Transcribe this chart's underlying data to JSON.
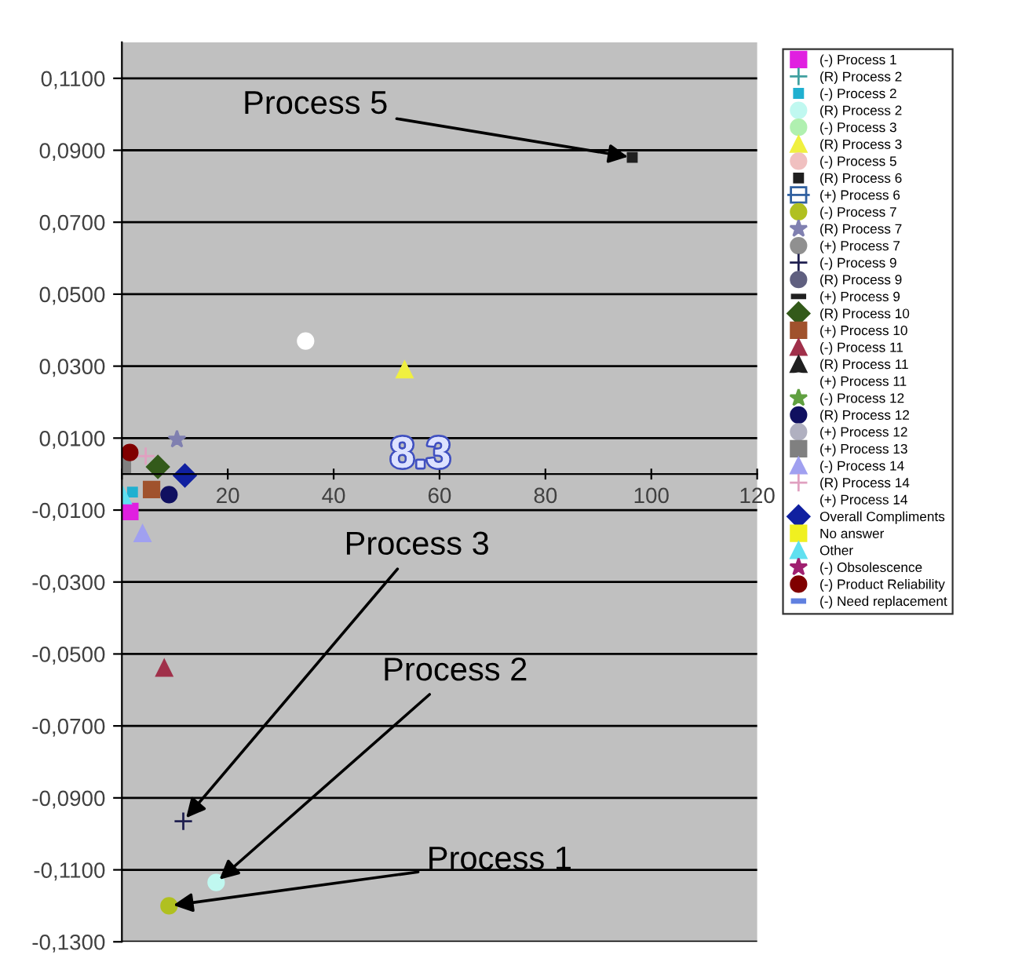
{
  "chart_data": {
    "type": "scatter",
    "xlim": [
      0,
      120
    ],
    "ylim": [
      -0.13,
      0.12
    ],
    "xticks": [
      {
        "value": 0,
        "label": null
      },
      20,
      40,
      60,
      80,
      100,
      120
    ],
    "yticks": [
      {
        "value": -0.13,
        "label": "-0,1300"
      },
      {
        "value": -0.11,
        "label": "-0,1100"
      },
      {
        "value": -0.09,
        "label": "-0,0900"
      },
      {
        "value": -0.07,
        "label": "-0,0700"
      },
      {
        "value": -0.05,
        "label": "-0,0500"
      },
      {
        "value": -0.03,
        "label": "-0,0300"
      },
      {
        "value": -0.01,
        "label": "-0,0100"
      },
      {
        "value": 0.01,
        "label": "0,0100"
      },
      {
        "value": 0.03,
        "label": "0,0300"
      },
      {
        "value": 0.05,
        "label": "0,0500"
      },
      {
        "value": 0.07,
        "label": "0,0700"
      },
      {
        "value": 0.09,
        "label": "0,0900"
      },
      {
        "value": 0.11,
        "label": "0,1100"
      }
    ],
    "grid": "y",
    "legend": "right",
    "annotations": [
      {
        "text": "Process 5",
        "x": 96.4,
        "y": 0.088
      },
      {
        "text": "Process 3",
        "x": 11.6,
        "y": -0.0965
      },
      {
        "text": "Process 2",
        "x": 17.8,
        "y": -0.1135
      },
      {
        "text": "Process 1",
        "x": 8.9,
        "y": -0.12
      },
      "8.3"
    ],
    "series": [
      {
        "name": "(-) Process 1",
        "color": "#e020e0",
        "marker": "square",
        "x": [
          1.5
        ],
        "values": [
          -0.0104
        ]
      },
      {
        "name": "(R) Process 2",
        "color": "#40a0a0",
        "marker": "cross"
      },
      {
        "name": "(-) Process 2",
        "color": "#20b0d0",
        "marker": "square",
        "x": [
          2.0
        ],
        "values": [
          -0.005
        ]
      },
      {
        "name": "(R) Process 2",
        "color": "#c0f8f0",
        "marker": "circle",
        "x": [
          17.8
        ],
        "values": [
          -0.1135
        ]
      },
      {
        "name": "(-) Process 3",
        "color": "#b0f0b0",
        "marker": "circle"
      },
      {
        "name": "(R) Process 3",
        "color": "#f0f040",
        "marker": "triangle",
        "x": [
          53.4
        ],
        "values": [
          0.029
        ]
      },
      {
        "name": "(-) Process 5",
        "color": "#f0c0c0",
        "marker": "circle"
      },
      {
        "name": "(R) Process 6",
        "color": "#202020",
        "marker": "square",
        "x": [
          96.4
        ],
        "values": [
          0.088
        ]
      },
      {
        "name": "(+) Process 6",
        "color": "#3060a0",
        "marker": "square",
        "line_style": "solid"
      },
      {
        "name": "(-) Process 7",
        "color": "#b0c020",
        "marker": "circle",
        "x": [
          8.9
        ],
        "values": [
          -0.12
        ]
      },
      {
        "name": "(R) Process 7",
        "color": "#8080b0",
        "marker": "star",
        "x": [
          10.4
        ],
        "values": [
          0.0096
        ]
      },
      {
        "name": "(+) Process 7",
        "color": "#909090",
        "marker": "circle"
      },
      {
        "name": "(-) Process 9",
        "color": "#202050",
        "marker": "cross",
        "x": [
          11.6
        ],
        "values": [
          -0.0965
        ]
      },
      {
        "name": "(R) Process 9",
        "color": "#606080",
        "marker": "circle"
      },
      {
        "name": "(+) Process 9",
        "color": "#202020"
      },
      {
        "name": "(R) Process 10",
        "color": "#335a1a",
        "marker": "diamond",
        "x": [
          6.8
        ],
        "values": [
          0.002
        ]
      },
      {
        "name": "(+) Process 10",
        "color": "#a0522d",
        "marker": "square",
        "x": [
          5.6
        ],
        "values": [
          -0.0043
        ]
      },
      {
        "name": "(-) Process 11",
        "color": "#a0304a",
        "marker": "triangle",
        "x": [
          8.0
        ],
        "values": [
          -0.0539
        ]
      },
      {
        "name": "(R) Process 11",
        "color": "#202020",
        "marker": "triangle"
      },
      {
        "name": "(+) Process 11",
        "color": "#ffffff",
        "marker": "circle",
        "x": [
          34.7
        ],
        "values": [
          0.037
        ]
      },
      {
        "name": "(-) Process 12",
        "color": "#60a040",
        "marker": "star"
      },
      {
        "name": "(R) Process 12",
        "color": "#101060",
        "marker": "circle",
        "x": [
          8.9
        ],
        "values": [
          -0.0057
        ]
      },
      {
        "name": "(+) Process 12",
        "color": "#b0b0c0",
        "marker": "circle"
      },
      {
        "name": "(+) Process 13",
        "color": "#808080",
        "marker": "square",
        "x": [
          0.1
        ],
        "values": [
          0.0026
        ]
      },
      {
        "name": "(-) Process 14",
        "color": "#a0a0f0",
        "marker": "triangle",
        "x": [
          3.9
        ],
        "values": [
          -0.0165
        ]
      },
      {
        "name": "(R) Process 14",
        "color": "#e0a0c0",
        "marker": "cross",
        "x": [
          4.5
        ],
        "values": [
          0.005
        ]
      },
      {
        "name": "(+) Process 14",
        "marker": "none"
      },
      {
        "name": "Overall Compliments",
        "color": "#1020a0",
        "marker": "diamond",
        "x": [
          11.9
        ],
        "values": [
          -0.0004
        ]
      },
      {
        "name": "No answer",
        "color": "#f0f020",
        "marker": "square"
      },
      {
        "name": "Other",
        "color": "#60e0f0",
        "marker": "triangle",
        "x": [
          0.2
        ],
        "values": [
          -0.006
        ]
      },
      {
        "name": "(-) Obsolescence",
        "color": "#a02070",
        "marker": "star"
      },
      {
        "name": "(-) Product Reliability",
        "color": "#800000",
        "marker": "circle",
        "x": [
          1.5
        ],
        "values": [
          0.006
        ]
      },
      {
        "name": "(-) Need replacement",
        "color": "#6080e0"
      }
    ]
  }
}
